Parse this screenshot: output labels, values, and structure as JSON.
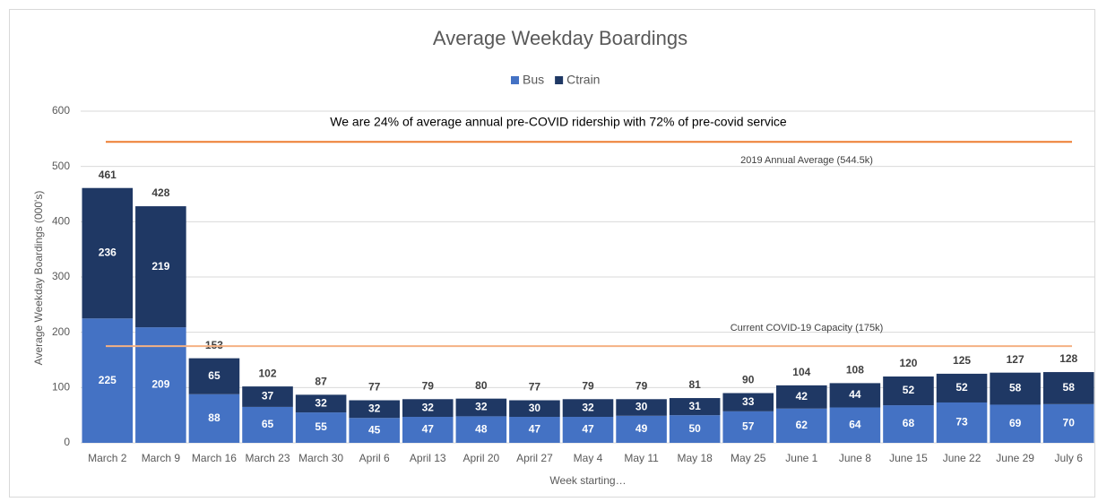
{
  "chart_data": {
    "type": "stacked_bar",
    "title": "Average Weekday Boardings",
    "annotation": "We are 24% of average annual pre-COVID ridership with 72% of pre-covid service",
    "xlabel": "Week starting…",
    "ylabel": "Average Weekday Boardings (000's)",
    "categories": [
      "March 2",
      "March 9",
      "March 16",
      "March 23",
      "March 30",
      "April 6",
      "April 13",
      "April 20",
      "April 27",
      "May 4",
      "May 11",
      "May 18",
      "May 25",
      "June 1",
      "June 8",
      "June 15",
      "June 22",
      "June 29",
      "July 6"
    ],
    "series": [
      {
        "name": "Bus",
        "color": "#4472c4",
        "values": [
          225,
          209,
          88,
          65,
          55,
          45,
          47,
          48,
          47,
          47,
          49,
          50,
          57,
          62,
          64,
          68,
          73,
          69,
          70
        ]
      },
      {
        "name": "Ctrain",
        "color": "#1f3864",
        "values": [
          236,
          219,
          65,
          37,
          32,
          32,
          32,
          32,
          30,
          32,
          30,
          31,
          33,
          42,
          44,
          52,
          52,
          58,
          58
        ]
      }
    ],
    "totals": [
      461,
      428,
      153,
      102,
      87,
      77,
      79,
      80,
      77,
      79,
      79,
      81,
      90,
      104,
      108,
      120,
      125,
      127,
      128
    ],
    "reference_lines": [
      {
        "value": 544.5,
        "label": "2019 Annual Average (544.5k)",
        "color": "#ed7d31"
      },
      {
        "value": 175,
        "label": "Current COVID-19 Capacity (175k)",
        "color": "#f4b183"
      }
    ],
    "ylim": [
      0,
      600
    ],
    "yticks": [
      0,
      100,
      200,
      300,
      400,
      500,
      600
    ],
    "grid": true,
    "legend": "top"
  }
}
